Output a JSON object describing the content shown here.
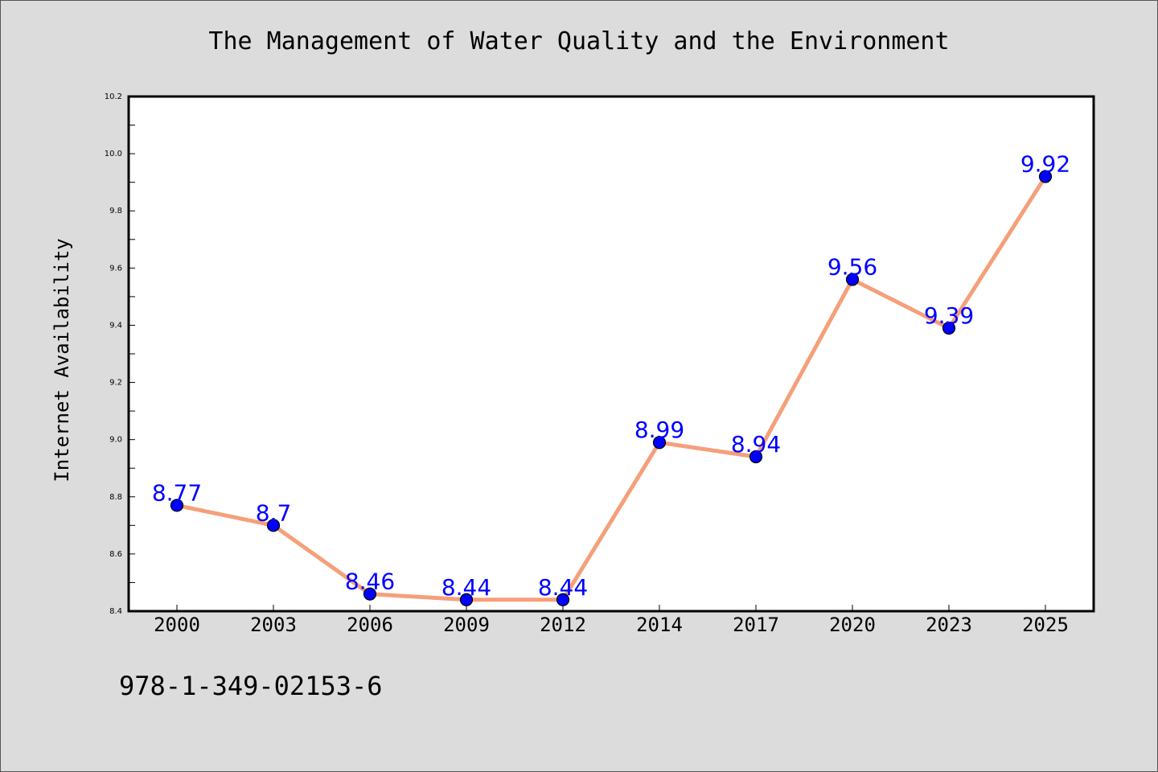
{
  "colors": {
    "background": "#dcdcdc",
    "plot_background": "#ffffff",
    "line": "#f4a07a",
    "marker": "#0000ff",
    "data_label": "#0000ff"
  },
  "footer": {
    "code": "978-1-349-02153-6"
  },
  "chart_data": {
    "type": "line",
    "title": "The Management of Water Quality and the Environment",
    "xlabel": "",
    "ylabel": "Internet Availability",
    "categories": [
      "2000",
      "2003",
      "2006",
      "2009",
      "2012",
      "2014",
      "2017",
      "2020",
      "2023",
      "2025"
    ],
    "series": [
      {
        "values": [
          8.77,
          8.7,
          8.46,
          8.44,
          8.44,
          8.99,
          8.94,
          9.56,
          9.39,
          9.92
        ],
        "labels": [
          "8.77",
          "8.7",
          "8.46",
          "8.44",
          "8.44",
          "8.99",
          "8.94",
          "9.56",
          "9.39",
          "9.92"
        ]
      }
    ],
    "ylim": [
      8.4,
      10.2
    ],
    "yticks": [
      8.4,
      8.6,
      8.8,
      9.0,
      9.2,
      9.4,
      9.6,
      9.8,
      10.0,
      10.2
    ],
    "ytick_labels": [
      "8.4",
      "8.6",
      "8.8",
      "9.0",
      "9.2",
      "9.4",
      "9.6",
      "9.8",
      "10.0",
      "10.2"
    ],
    "grid": false,
    "legend": "none",
    "marker": "circle"
  }
}
